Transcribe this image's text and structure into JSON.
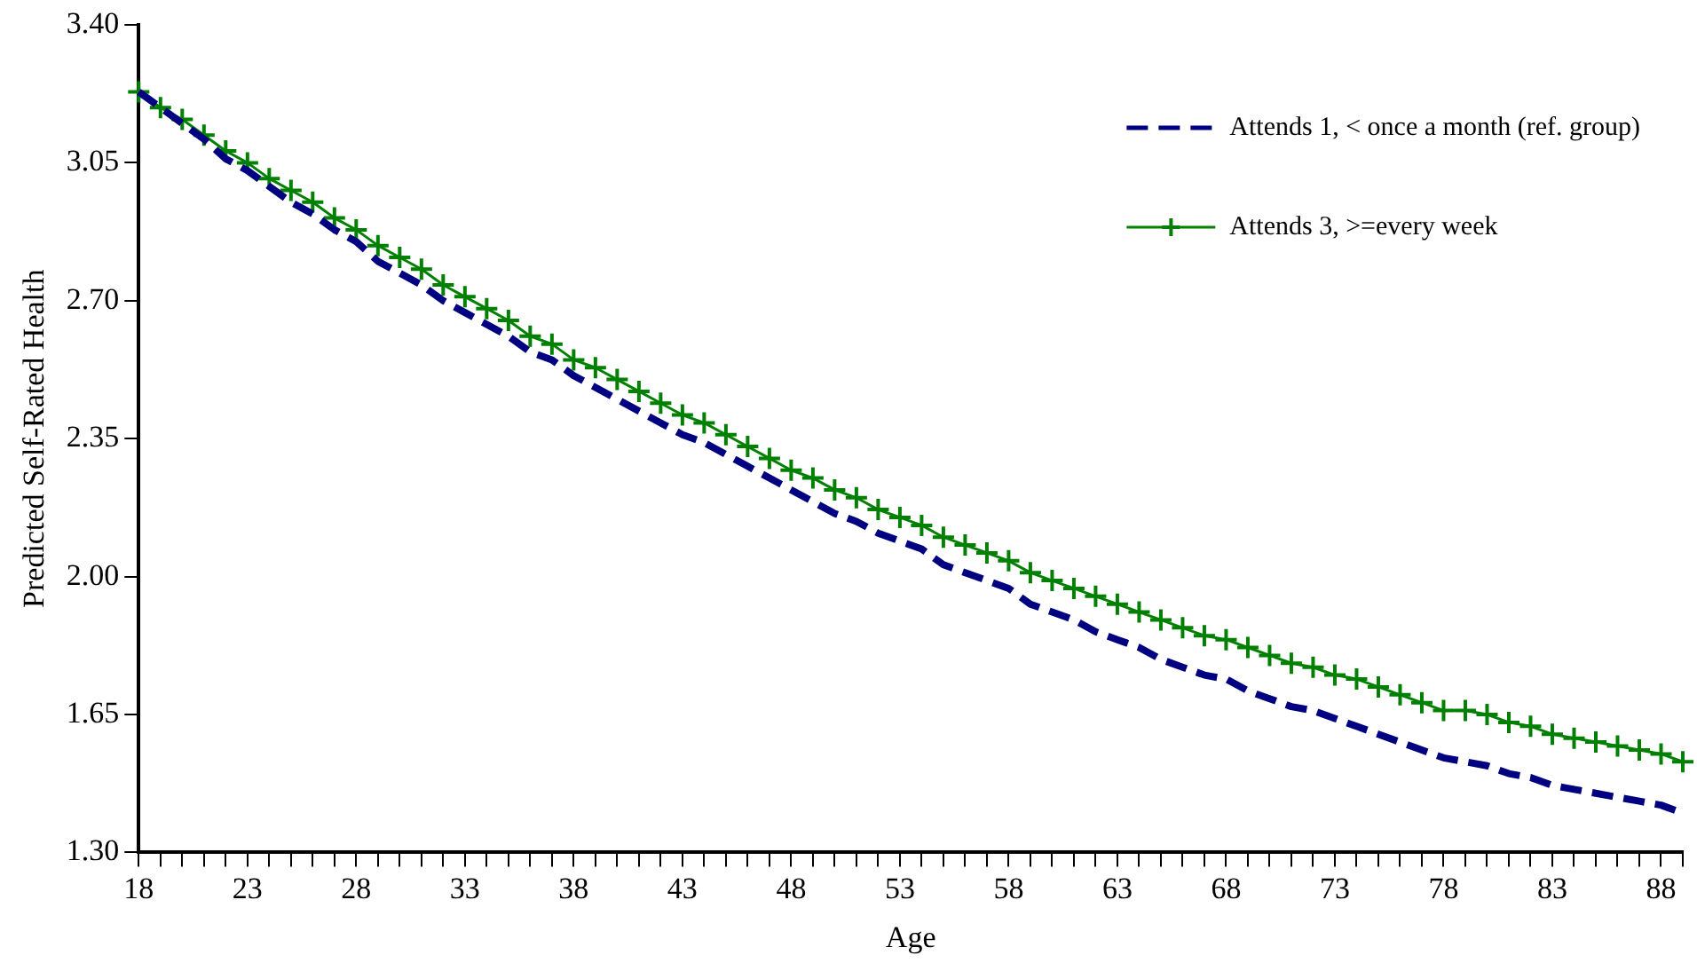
{
  "chart_data": {
    "type": "line",
    "xlabel": "Age",
    "ylabel": "Predicted Self-Rated Health",
    "categories": [
      "18",
      null,
      null,
      null,
      null,
      "23",
      null,
      null,
      null,
      null,
      "28",
      null,
      null,
      null,
      null,
      "33",
      null,
      null,
      null,
      null,
      "38",
      null,
      null,
      null,
      null,
      "43",
      null,
      null,
      null,
      null,
      "48",
      null,
      null,
      null,
      null,
      "53",
      null,
      null,
      null,
      null,
      "58",
      null,
      null,
      null,
      null,
      "63",
      null,
      null,
      null,
      null,
      "68",
      null,
      null,
      null,
      null,
      "73",
      null,
      null,
      null,
      null,
      "78",
      null,
      null,
      null,
      null,
      "83",
      null,
      null,
      null,
      null,
      "88",
      null
    ],
    "ylim": [
      1.3,
      3.4
    ],
    "yticks": [
      {
        "value": 1.3,
        "label": "1.30"
      },
      {
        "value": 1.65,
        "label": "1.65"
      },
      {
        "value": 2.0,
        "label": "2.00"
      },
      {
        "value": 2.35,
        "label": "2.35"
      },
      {
        "value": 2.7,
        "label": "2.70"
      },
      {
        "value": 3.05,
        "label": "3.05"
      },
      {
        "value": 3.4,
        "label": "3.40"
      }
    ],
    "grid": false,
    "legend": "top right",
    "series": [
      {
        "name": "Attends 1, < once a month (ref. group)",
        "color": "#000080",
        "line_style": "dashed",
        "marker": "none",
        "values": [
          3.23,
          3.19,
          3.15,
          3.11,
          3.06,
          3.03,
          2.99,
          2.95,
          2.92,
          2.88,
          2.85,
          2.8,
          2.77,
          2.74,
          2.7,
          2.67,
          2.64,
          2.61,
          2.57,
          2.55,
          2.51,
          2.48,
          2.45,
          2.42,
          2.39,
          2.36,
          2.34,
          2.31,
          2.28,
          2.25,
          2.22,
          2.19,
          2.16,
          2.14,
          2.11,
          2.09,
          2.07,
          2.03,
          2.01,
          1.99,
          1.97,
          1.93,
          1.91,
          1.89,
          1.86,
          1.84,
          1.82,
          1.79,
          1.77,
          1.75,
          1.74,
          1.71,
          1.69,
          1.67,
          1.66,
          1.64,
          1.62,
          1.6,
          1.58,
          1.56,
          1.54,
          1.53,
          1.52,
          1.5,
          1.49,
          1.47,
          1.46,
          1.45,
          1.44,
          1.43,
          1.42,
          1.4
        ]
      },
      {
        "name": "Attends 3, >=every week",
        "color": "#008000",
        "line_style": "solid",
        "marker": "cross",
        "values": [
          3.23,
          3.19,
          3.16,
          3.12,
          3.08,
          3.05,
          3.01,
          2.98,
          2.95,
          2.91,
          2.88,
          2.84,
          2.81,
          2.78,
          2.74,
          2.71,
          2.68,
          2.65,
          2.61,
          2.59,
          2.55,
          2.53,
          2.5,
          2.47,
          2.44,
          2.41,
          2.39,
          2.36,
          2.33,
          2.3,
          2.27,
          2.25,
          2.22,
          2.2,
          2.17,
          2.15,
          2.13,
          2.1,
          2.08,
          2.06,
          2.04,
          2.01,
          1.99,
          1.97,
          1.95,
          1.93,
          1.91,
          1.89,
          1.87,
          1.85,
          1.84,
          1.82,
          1.8,
          1.78,
          1.77,
          1.75,
          1.74,
          1.72,
          1.7,
          1.68,
          1.66,
          1.66,
          1.65,
          1.63,
          1.62,
          1.6,
          1.59,
          1.58,
          1.57,
          1.56,
          1.55,
          1.53
        ]
      }
    ]
  }
}
